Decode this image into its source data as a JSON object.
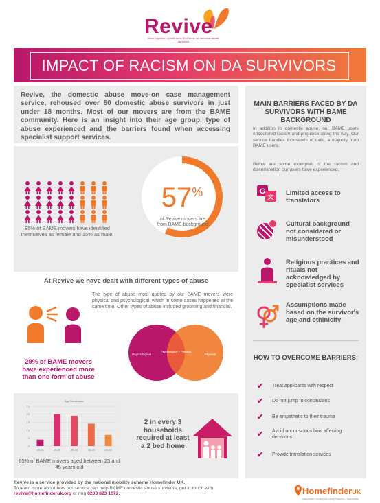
{
  "header": {
    "logo": "Revive",
    "tagline": "Move together, rebuild lives, find home for domestic abuse survivors",
    "title": "IMPACT OF RACISM ON DA SURVIVORS"
  },
  "intro": {
    "text": "Revive, the domestic abuse move-on case management service, rehoused over 60 domestic abuse survivors in just under 18 months. Most of our movers are from the BAME community. Here is an insight into their age group, type of abuse experienced and the barriers found when accessing specialist support services."
  },
  "gender": {
    "female_share": 0.85,
    "caption": "85% of BAME movers have identified themselves as female and 15% as male."
  },
  "bame_share": {
    "value": "57",
    "unit": "%",
    "fraction": 0.57,
    "caption": "of Revive movers are from BAME background"
  },
  "abuse": {
    "title": "At Revive we have dealt with different types of abuse",
    "text": "The type of abuse most quoted by our BAME movers were physical and psychological, which in some cases happened at the same time. Other types of abuse included grooming and financial.",
    "stat": "29% of BAME movers have experienced more than one form of abuse",
    "venn": {
      "left": "Psychological",
      "overlap": "Psychological + Physical",
      "right": "Physical",
      "left_color": "#b8176a",
      "right_color": "#f07a2a"
    }
  },
  "age": {
    "caption": "65% of BAME movers aged between 25 and 45 years old",
    "house_text": "2 in every 3 households required at least a 2 bed home"
  },
  "chart_data": {
    "type": "bar",
    "title": "Age Breakdown",
    "categories": [
      "18-24",
      "25-34",
      "35-44",
      "45-54",
      "55-64"
    ],
    "values": [
      4,
      20,
      19,
      14,
      7
    ],
    "colors": [
      "#b8176a",
      "#d9306f",
      "#e64a60",
      "#ec6a4a",
      "#f08a3a"
    ],
    "yticks": [
      "0",
      "5",
      "10",
      "15",
      "20",
      "25"
    ],
    "ylim": [
      0,
      25
    ]
  },
  "barriers": {
    "title": "MAIN BARRIERS FACED BY DA SURVIVORS WITH BAME BACKGROUND",
    "intro": "In addition to domestic abuse, our BAME users encoutered racism and prejudice along the way. Our service handles thousands of calls, a majority from BAME users.",
    "intro2": "Below are some examples of the racism and discrimination our users have experienced.",
    "items": [
      {
        "label": "Limited access to translators",
        "icon": "translate-icon"
      },
      {
        "label": "Cultural background not considered or misunderstood",
        "icon": "culture-icon"
      },
      {
        "label": "Religious practices and rituals not acknowledged by specialist services",
        "icon": "prayer-icon"
      },
      {
        "label": "Assumptions made based on the survivor's age and ethinicity",
        "icon": "gender-icon"
      }
    ]
  },
  "overcome": {
    "title": "HOW TO OVERCOME BARRIERS:",
    "check": "✔",
    "items": [
      "Treat applicants with respect",
      "Do not jump to conclusions",
      "Be empathetic to their trauma",
      "Avoid unconscious bias affecting decisions",
      "Provide translation services"
    ]
  },
  "footer": {
    "line1": "Revive is a service provided by the national mobility scheme Homefinder UK.",
    "line2": "To learn more about how our service can help BAME domestic abuse survivors, get in touch with",
    "email": "revive@homefinderuk.org",
    "line3": "or ring",
    "phone": "0203 823 1072.",
    "logo": "Homefinder",
    "logo_uk": "UK",
    "logo_tag": "Nationwide Housing & Moving Platform – Nationwide"
  }
}
